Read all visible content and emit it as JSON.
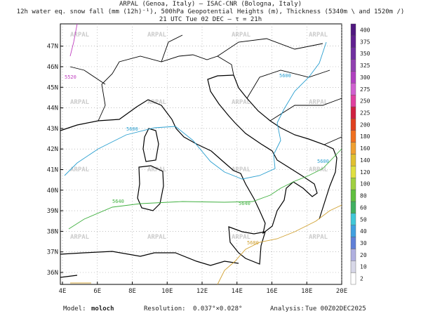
{
  "header": {
    "line1": "ARPAL (Genoa, Italy)  –  ISAC-CNR (Bologna, Italy)",
    "line2": "12h water eq. snow fall (mm (12h)⁻¹), 500hPa Geopotential Heights (m), Thickness (5340m \\ and 1520m /)",
    "line3": "21 UTC Tue 02 DEC  –  τ = 21h"
  },
  "map": {
    "lon_labels": [
      "4E",
      "6E",
      "8E",
      "10E",
      "12E",
      "14E",
      "16E",
      "18E",
      "20E"
    ],
    "lat_labels": [
      "36N",
      "37N",
      "38N",
      "39N",
      "40N",
      "41N",
      "42N",
      "43N",
      "44N",
      "45N",
      "46N",
      "47N"
    ],
    "watermark": "ARPAL",
    "contour_labels": [
      "5520",
      "5600",
      "5600",
      "5600",
      "5640",
      "5640",
      "5680"
    ]
  },
  "colorbar": {
    "labels": [
      2,
      10,
      20,
      30,
      40,
      50,
      60,
      80,
      100,
      120,
      140,
      160,
      180,
      200,
      225,
      250,
      275,
      300,
      325,
      350,
      375,
      400
    ],
    "colors": [
      "#ffffff",
      "#d8d8e8",
      "#b0b0e0",
      "#6080d8",
      "#40a0e0",
      "#40c8d8",
      "#40b060",
      "#60c040",
      "#a0d040",
      "#e0e040",
      "#e0c030",
      "#f0a030",
      "#f07020",
      "#e04020",
      "#d02040",
      "#e040a0",
      "#d060d0",
      "#b040c0",
      "#9040b0",
      "#7030a0",
      "#602090",
      "#501880"
    ]
  },
  "footer": {
    "model_label": "Model:",
    "model": "moloch",
    "resolution_label": "Resolution:",
    "resolution": "0.037°×0.028°",
    "analysis_label": "Analysis:",
    "analysis": "Tue 00Z02DEC2025"
  }
}
